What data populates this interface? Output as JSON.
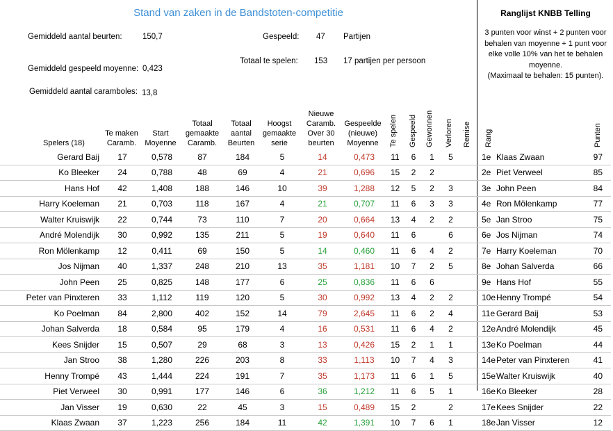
{
  "title": "Stand van zaken in de Bandstoten-competitie",
  "stats": {
    "avg_beurten_label": "Gemiddeld aantal beurten:",
    "avg_beurten_value": "150,7",
    "avg_moyenne_label": "Gemiddeld gespeeld moyenne:",
    "avg_moyenne_value": "0,423",
    "avg_carambole_label": "Gemiddeld aantal caramboles:",
    "avg_carambole_value": "13,8",
    "gespeeld_label": "Gespeeld:",
    "gespeeld_value": "47",
    "gespeeld_unit": "Partijen",
    "te_spelen_label": "Totaal te spelen:",
    "te_spelen_value": "153",
    "te_spelen_unit": "17 partijen per persoon"
  },
  "ranking_panel": {
    "title": "Ranglijst KNBB Telling",
    "rule_lines": [
      "3 punten voor winst + 2 punten voor",
      "behalen van moyenne + 1 punt voor",
      "elke volle 10% van het te behalen",
      "moyenne.",
      "(Maximaal te behalen: 15 punten)."
    ]
  },
  "headers": {
    "spelers": "Spelers (18)",
    "te_maken": [
      "Te maken",
      "Caramb."
    ],
    "start": [
      "Start",
      "Moyenne"
    ],
    "tot_caramb": [
      "Totaal",
      "gemaakte",
      "Caramb."
    ],
    "tot_beurten": [
      "Totaal",
      "aantal",
      "Beurten"
    ],
    "hoogst": [
      "Hoogst",
      "gemaakte",
      "serie"
    ],
    "nieuwe": [
      "Nieuwe",
      "Caramb.",
      "Over 30",
      "beurten"
    ],
    "gespeelde": [
      "Gespeelde",
      "(nieuwe)",
      "Moyenne"
    ],
    "te_spelen": "Te spelen",
    "gespeeld": "Gespeeld",
    "gewonnen": "Gewonnen",
    "verloren": "Verloren",
    "remise": "Remise",
    "rang": "Rang",
    "punten": "Punten"
  },
  "players": [
    {
      "name": "Gerard Baij",
      "te_maken": "17",
      "start": "0,578",
      "tot_caramb": "87",
      "tot_beurten": "184",
      "hoogst": "5",
      "nieuwe": "14",
      "nieuwe_color": "red",
      "moyenne": "0,473",
      "moyenne_color": "red",
      "te_spelen": "11",
      "gespeeld": "6",
      "gewonnen": "1",
      "verloren": "5",
      "remise": ""
    },
    {
      "name": "Ko Bleeker",
      "te_maken": "24",
      "start": "0,788",
      "tot_caramb": "48",
      "tot_beurten": "69",
      "hoogst": "4",
      "nieuwe": "21",
      "nieuwe_color": "red",
      "moyenne": "0,696",
      "moyenne_color": "red",
      "te_spelen": "15",
      "gespeeld": "2",
      "gewonnen": "2",
      "verloren": "",
      "remise": ""
    },
    {
      "name": "Hans Hof",
      "te_maken": "42",
      "start": "1,408",
      "tot_caramb": "188",
      "tot_beurten": "146",
      "hoogst": "10",
      "nieuwe": "39",
      "nieuwe_color": "red",
      "moyenne": "1,288",
      "moyenne_color": "red",
      "te_spelen": "12",
      "gespeeld": "5",
      "gewonnen": "2",
      "verloren": "3",
      "remise": ""
    },
    {
      "name": "Harry Koeleman",
      "te_maken": "21",
      "start": "0,703",
      "tot_caramb": "118",
      "tot_beurten": "167",
      "hoogst": "4",
      "nieuwe": "21",
      "nieuwe_color": "green",
      "moyenne": "0,707",
      "moyenne_color": "green",
      "te_spelen": "11",
      "gespeeld": "6",
      "gewonnen": "3",
      "verloren": "3",
      "remise": ""
    },
    {
      "name": "Walter Kruiswijk",
      "te_maken": "22",
      "start": "0,744",
      "tot_caramb": "73",
      "tot_beurten": "110",
      "hoogst": "7",
      "nieuwe": "20",
      "nieuwe_color": "red",
      "moyenne": "0,664",
      "moyenne_color": "red",
      "te_spelen": "13",
      "gespeeld": "4",
      "gewonnen": "2",
      "verloren": "2",
      "remise": ""
    },
    {
      "name": "André Molendijk",
      "te_maken": "30",
      "start": "0,992",
      "tot_caramb": "135",
      "tot_beurten": "211",
      "hoogst": "5",
      "nieuwe": "19",
      "nieuwe_color": "red",
      "moyenne": "0,640",
      "moyenne_color": "red",
      "te_spelen": "11",
      "gespeeld": "6",
      "gewonnen": "",
      "verloren": "6",
      "remise": ""
    },
    {
      "name": "Ron Mölenkamp",
      "te_maken": "12",
      "start": "0,411",
      "tot_caramb": "69",
      "tot_beurten": "150",
      "hoogst": "5",
      "nieuwe": "14",
      "nieuwe_color": "green",
      "moyenne": "0,460",
      "moyenne_color": "green",
      "te_spelen": "11",
      "gespeeld": "6",
      "gewonnen": "4",
      "verloren": "2",
      "remise": ""
    },
    {
      "name": "Jos Nijman",
      "te_maken": "40",
      "start": "1,337",
      "tot_caramb": "248",
      "tot_beurten": "210",
      "hoogst": "13",
      "nieuwe": "35",
      "nieuwe_color": "red",
      "moyenne": "1,181",
      "moyenne_color": "red",
      "te_spelen": "10",
      "gespeeld": "7",
      "gewonnen": "2",
      "verloren": "5",
      "remise": ""
    },
    {
      "name": "John Peen",
      "te_maken": "25",
      "start": "0,825",
      "tot_caramb": "148",
      "tot_beurten": "177",
      "hoogst": "6",
      "nieuwe": "25",
      "nieuwe_color": "green",
      "moyenne": "0,836",
      "moyenne_color": "green",
      "te_spelen": "11",
      "gespeeld": "6",
      "gewonnen": "6",
      "verloren": "",
      "remise": ""
    },
    {
      "name": "Peter van Pinxteren",
      "te_maken": "33",
      "start": "1,112",
      "tot_caramb": "119",
      "tot_beurten": "120",
      "hoogst": "5",
      "nieuwe": "30",
      "nieuwe_color": "red",
      "moyenne": "0,992",
      "moyenne_color": "red",
      "te_spelen": "13",
      "gespeeld": "4",
      "gewonnen": "2",
      "verloren": "2",
      "remise": ""
    },
    {
      "name": "Ko Poelman",
      "te_maken": "84",
      "start": "2,800",
      "tot_caramb": "402",
      "tot_beurten": "152",
      "hoogst": "14",
      "nieuwe": "79",
      "nieuwe_color": "red",
      "moyenne": "2,645",
      "moyenne_color": "red",
      "te_spelen": "11",
      "gespeeld": "6",
      "gewonnen": "2",
      "verloren": "4",
      "remise": ""
    },
    {
      "name": "Johan Salverda",
      "te_maken": "18",
      "start": "0,584",
      "tot_caramb": "95",
      "tot_beurten": "179",
      "hoogst": "4",
      "nieuwe": "16",
      "nieuwe_color": "red",
      "moyenne": "0,531",
      "moyenne_color": "red",
      "te_spelen": "11",
      "gespeeld": "6",
      "gewonnen": "4",
      "verloren": "2",
      "remise": ""
    },
    {
      "name": "Kees Snijder",
      "te_maken": "15",
      "start": "0,507",
      "tot_caramb": "29",
      "tot_beurten": "68",
      "hoogst": "3",
      "nieuwe": "13",
      "nieuwe_color": "red",
      "moyenne": "0,426",
      "moyenne_color": "red",
      "te_spelen": "15",
      "gespeeld": "2",
      "gewonnen": "1",
      "verloren": "1",
      "remise": ""
    },
    {
      "name": "Jan Stroo",
      "te_maken": "38",
      "start": "1,280",
      "tot_caramb": "226",
      "tot_beurten": "203",
      "hoogst": "8",
      "nieuwe": "33",
      "nieuwe_color": "red",
      "moyenne": "1,113",
      "moyenne_color": "red",
      "te_spelen": "10",
      "gespeeld": "7",
      "gewonnen": "4",
      "verloren": "3",
      "remise": ""
    },
    {
      "name": "Henny Trompé",
      "te_maken": "43",
      "start": "1,444",
      "tot_caramb": "224",
      "tot_beurten": "191",
      "hoogst": "7",
      "nieuwe": "35",
      "nieuwe_color": "red",
      "moyenne": "1,173",
      "moyenne_color": "red",
      "te_spelen": "11",
      "gespeeld": "6",
      "gewonnen": "1",
      "verloren": "5",
      "remise": ""
    },
    {
      "name": "Piet Verweel",
      "te_maken": "30",
      "start": "0,991",
      "tot_caramb": "177",
      "tot_beurten": "146",
      "hoogst": "6",
      "nieuwe": "36",
      "nieuwe_color": "green",
      "moyenne": "1,212",
      "moyenne_color": "green",
      "te_spelen": "11",
      "gespeeld": "6",
      "gewonnen": "5",
      "verloren": "1",
      "remise": ""
    },
    {
      "name": "Jan Visser",
      "te_maken": "19",
      "start": "0,630",
      "tot_caramb": "22",
      "tot_beurten": "45",
      "hoogst": "3",
      "nieuwe": "15",
      "nieuwe_color": "red",
      "moyenne": "0,489",
      "moyenne_color": "red",
      "te_spelen": "15",
      "gespeeld": "2",
      "gewonnen": "",
      "verloren": "2",
      "remise": ""
    },
    {
      "name": "Klaas Zwaan",
      "te_maken": "37",
      "start": "1,223",
      "tot_caramb": "256",
      "tot_beurten": "184",
      "hoogst": "11",
      "nieuwe": "42",
      "nieuwe_color": "green",
      "moyenne": "1,391",
      "moyenne_color": "green",
      "te_spelen": "10",
      "gespeeld": "7",
      "gewonnen": "6",
      "verloren": "1",
      "remise": ""
    }
  ],
  "ranking": [
    {
      "rang": "1e",
      "name": "Klaas Zwaan",
      "punten": "97"
    },
    {
      "rang": "2e",
      "name": "Piet Verweel",
      "punten": "85"
    },
    {
      "rang": "3e",
      "name": "John Peen",
      "punten": "84"
    },
    {
      "rang": "4e",
      "name": "Ron Mölenkamp",
      "punten": "77"
    },
    {
      "rang": "5e",
      "name": "Jan Stroo",
      "punten": "75"
    },
    {
      "rang": "6e",
      "name": "Jos Nijman",
      "punten": "74"
    },
    {
      "rang": "7e",
      "name": "Harry Koeleman",
      "punten": "70"
    },
    {
      "rang": "8e",
      "name": "Johan Salverda",
      "punten": "66"
    },
    {
      "rang": "9e",
      "name": "Hans Hof",
      "punten": "55"
    },
    {
      "rang": "10e",
      "name": "Henny Trompé",
      "punten": "54"
    },
    {
      "rang": "11e",
      "name": "Gerard Baij",
      "punten": "53"
    },
    {
      "rang": "12e",
      "name": "André Molendijk",
      "punten": "45"
    },
    {
      "rang": "13e",
      "name": "Ko Poelman",
      "punten": "44"
    },
    {
      "rang": "14e",
      "name": "Peter van Pinxteren",
      "punten": "41"
    },
    {
      "rang": "15e",
      "name": "Walter Kruiswijk",
      "punten": "40"
    },
    {
      "rang": "16e",
      "name": "Ko Bleeker",
      "punten": "28"
    },
    {
      "rang": "17e",
      "name": "Kees Snijder",
      "punten": "22"
    },
    {
      "rang": "18e",
      "name": "Jan Visser",
      "punten": "12"
    }
  ],
  "colors": {
    "title": "#3d8fd6",
    "red": "#c0392b",
    "green": "#27a03a"
  }
}
